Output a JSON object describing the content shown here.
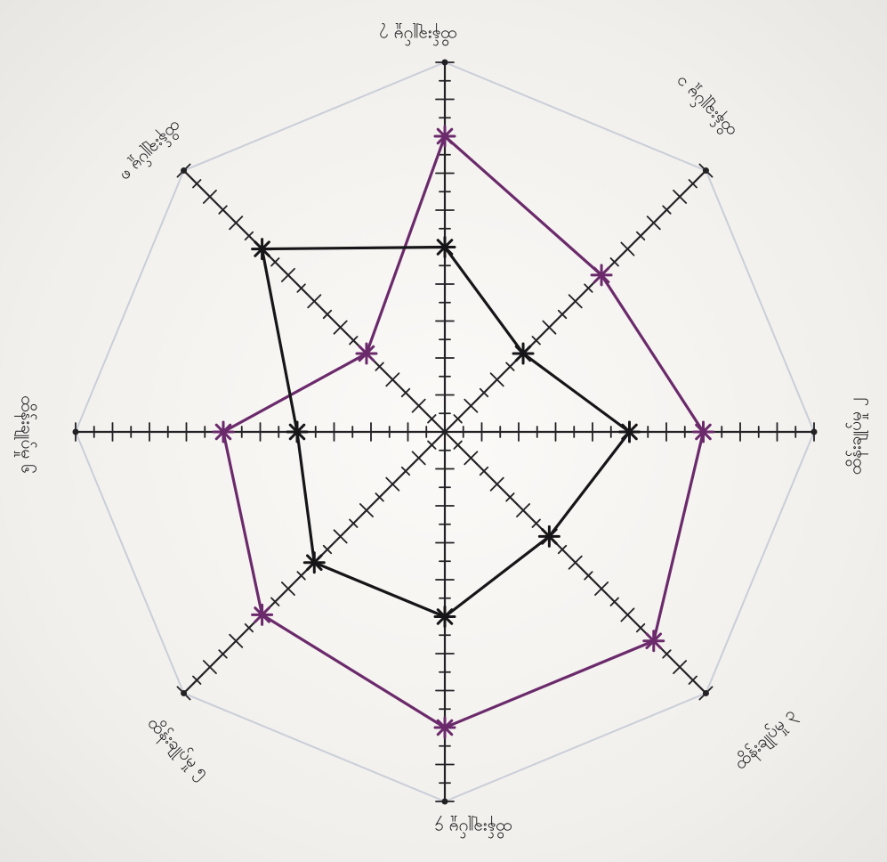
{
  "chart_data": {
    "type": "radar",
    "title": "",
    "axes": [
      "ထိန်းချုပ်မှု ၇",
      "ထိန်းချုပ်မှု ၁",
      "ထိန်းချုပ်မှု ၂",
      "ထိန်းချုပ်မှု ၃",
      "ထိန်းချုပ်မှု ၄",
      "ထိန်းချုပ်မှု ၅",
      "ထိန်းချုပ်မှု ၆",
      "ထိန်းချုပ်မှု ၈"
    ],
    "scale_max": 10,
    "series": [
      {
        "values": [
          8,
          6,
          7,
          8,
          8,
          7,
          6,
          3
        ]
      },
      {
        "values": [
          5,
          3,
          5,
          4,
          5,
          5,
          4,
          7
        ]
      }
    ],
    "colors": {
      "series_1": "#6b2a6b",
      "series_2": "#161618",
      "axis": "#222124",
      "outline": "#c9ced8"
    }
  }
}
